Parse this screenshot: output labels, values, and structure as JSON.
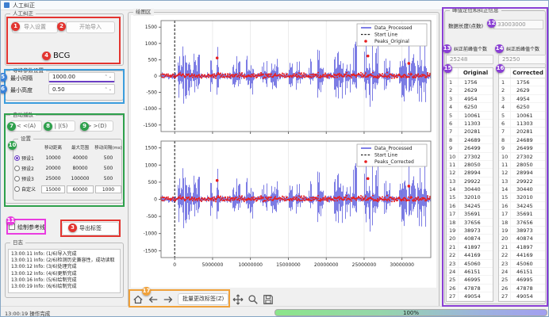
{
  "window": {
    "title": "人工纠正"
  },
  "left_panel": {
    "manual_group": {
      "title": "人工纠正",
      "import_settings_btn": "导入设置",
      "start_import_btn": "开始导入",
      "signal_label": "BCG"
    },
    "peak_params_group": {
      "title": "寻峰参数设置",
      "min_interval_label": "最小间隔",
      "min_interval_value": "1000.00",
      "min_height_label": "最小高度",
      "min_height_value": "0.50"
    },
    "autoplay_group": {
      "title": "自动播放",
      "prev_btn": "< <(A)",
      "pause_btn": "| |(S)",
      "next_btn": "> >(D)",
      "settings_group": {
        "title": "设置",
        "columns": [
          "移动距离",
          "最大范围",
          "移动间隔(ms)"
        ],
        "presets": [
          {
            "label": "预设1",
            "selected": true,
            "editable": false,
            "values": [
              "10000",
              "40000",
              "500"
            ]
          },
          {
            "label": "预设2",
            "selected": false,
            "editable": false,
            "values": [
              "20000",
              "80000",
              "500"
            ]
          },
          {
            "label": "预设3",
            "selected": false,
            "editable": false,
            "values": [
              "25000",
              "100000",
              "500"
            ]
          },
          {
            "label": "自定义",
            "selected": false,
            "editable": true,
            "values": [
              "15000",
              "60000",
              "1000"
            ]
          }
        ]
      }
    },
    "reference_line_checkbox_label": "绘制参考线",
    "reference_line_checked": false,
    "export_labels_btn": "导出标签",
    "log_group": {
      "title": "日志",
      "entries": [
        "13:00:11 Info: (1/6)导入完成",
        "13:00:11 Info: (2/6)检测历史兼容性，成功读取",
        "13:00:12 Info: (3/6)处理完成",
        "13:00:12 Info: (4/6)更新完成",
        "13:00:16 Info: (5/6)绘制完成",
        "13:00:19 Info: (6/6)绘制完成"
      ]
    },
    "status_text": "13:00:19 操作完成"
  },
  "plot_panel": {
    "title": "绘图区",
    "toolbar": {
      "home_icon": "home",
      "back_icon": "back-arrow",
      "forward_icon": "forward-arrow",
      "batch_edit_btn": "批量更改标签(Z)",
      "pan_icon": "pan-arrows",
      "zoom_icon": "magnifier",
      "save_icon": "save-floppy"
    }
  },
  "chart_data": [
    {
      "type": "line",
      "title": "",
      "xlabel": "",
      "ylabel": "",
      "xlim": [
        -1800000,
        33800000
      ],
      "ylim": [
        -1700,
        1700
      ],
      "xticks": [
        0,
        5000000,
        10000000,
        15000000,
        20000000,
        25000000,
        30000000
      ],
      "yticks": [
        -1500,
        -1000,
        -500,
        0,
        500,
        1000,
        1500
      ],
      "show_x_labels": false,
      "grid": "vertical",
      "legend": {
        "position": "upper-right",
        "entries": [
          {
            "label": "Data_Processed",
            "type": "line",
            "color": "#2a2ad4"
          },
          {
            "label": "Start Line",
            "type": "dashed",
            "color": "#222222"
          },
          {
            "label": "Peaks_Original",
            "type": "dot",
            "color": "#e81e1e"
          }
        ]
      },
      "start_line_x": 0,
      "signal": {
        "name": "Data_Processed",
        "color": "#2a2ad4",
        "seed": 7,
        "baseline_amplitude": 120,
        "bursts": [
          [
            300000,
            1200000,
            1250
          ],
          [
            1300000,
            2200000,
            950
          ],
          [
            2300000,
            3300000,
            820
          ],
          [
            4600000,
            5000000,
            900
          ],
          [
            5500000,
            5800000,
            1380
          ],
          [
            7600000,
            8600000,
            700
          ],
          [
            9400000,
            10400000,
            920
          ],
          [
            11400000,
            12200000,
            640
          ],
          [
            12600000,
            13600000,
            880
          ],
          [
            15000000,
            15500000,
            700
          ],
          [
            16000000,
            16600000,
            800
          ],
          [
            17600000,
            18400000,
            660
          ],
          [
            18800000,
            19600000,
            980
          ],
          [
            21000000,
            22200000,
            1200
          ],
          [
            22400000,
            23200000,
            900
          ],
          [
            23400000,
            24000000,
            1300
          ],
          [
            25000000,
            25800000,
            1250
          ],
          [
            26000000,
            26800000,
            1350
          ],
          [
            27600000,
            28400000,
            820
          ],
          [
            29600000,
            30600000,
            1200
          ],
          [
            30800000,
            31800000,
            1350
          ],
          [
            32000000,
            33200000,
            1400
          ]
        ]
      },
      "peaks": {
        "name": "Peaks_Original",
        "color": "#e81e1e",
        "count": 25248,
        "band_y": [
          -70,
          110
        ],
        "outliers": [
          [
            5600000,
            555
          ],
          [
            25500000,
            615
          ],
          [
            30900000,
            390
          ]
        ]
      }
    },
    {
      "type": "line",
      "title": "",
      "xlabel": "",
      "ylabel": "",
      "xlim": [
        -1800000,
        33800000
      ],
      "ylim": [
        -1700,
        1700
      ],
      "xticks": [
        0,
        5000000,
        10000000,
        15000000,
        20000000,
        25000000,
        30000000
      ],
      "yticks": [
        -1500,
        -1000,
        -500,
        0,
        500,
        1000,
        1500
      ],
      "show_x_labels": true,
      "grid": "vertical",
      "legend": {
        "position": "upper-right",
        "entries": [
          {
            "label": "Data_Processed",
            "type": "line",
            "color": "#2a2ad4"
          },
          {
            "label": "Start Line",
            "type": "dashed",
            "color": "#222222"
          },
          {
            "label": "Peaks_Corrected",
            "type": "dot",
            "color": "#e81e1e"
          }
        ]
      },
      "start_line_x": 0,
      "signal": {
        "name": "Data_Processed",
        "color": "#2a2ad4",
        "seed": 7,
        "baseline_amplitude": 120,
        "bursts": [
          [
            300000,
            1200000,
            1250
          ],
          [
            1300000,
            2200000,
            950
          ],
          [
            2300000,
            3300000,
            820
          ],
          [
            4600000,
            5000000,
            900
          ],
          [
            5500000,
            5800000,
            1380
          ],
          [
            7600000,
            8600000,
            700
          ],
          [
            9400000,
            10400000,
            920
          ],
          [
            11400000,
            12200000,
            640
          ],
          [
            12600000,
            13600000,
            880
          ],
          [
            15000000,
            15500000,
            700
          ],
          [
            16000000,
            16600000,
            800
          ],
          [
            17600000,
            18400000,
            660
          ],
          [
            18800000,
            19600000,
            980
          ],
          [
            21000000,
            22200000,
            1200
          ],
          [
            22400000,
            23200000,
            900
          ],
          [
            23400000,
            24000000,
            1300
          ],
          [
            25000000,
            25800000,
            1250
          ],
          [
            26000000,
            26800000,
            1350
          ],
          [
            27600000,
            28400000,
            820
          ],
          [
            29600000,
            30600000,
            1200
          ],
          [
            30800000,
            31800000,
            1350
          ],
          [
            32000000,
            33200000,
            1400
          ]
        ]
      },
      "peaks": {
        "name": "Peaks_Corrected",
        "color": "#e81e1e",
        "count": 25250,
        "band_y": [
          -70,
          110
        ],
        "outliers": [
          [
            5600000,
            550
          ],
          [
            25500000,
            605
          ],
          [
            30900000,
            385
          ]
        ]
      }
    }
  ],
  "right_panel": {
    "title": "峰值定位和纠正信息",
    "data_length_label": "数据长度(点数)",
    "data_length_value": "33003000",
    "before_count_label": "纠正前峰值个数",
    "before_count_value": "25248",
    "after_count_label": "纠正后峰值个数",
    "after_count_value": "25250",
    "original_table": {
      "header": "Original",
      "rows": [
        [
          "1",
          "1756"
        ],
        [
          "2",
          "2629"
        ],
        [
          "3",
          "4954"
        ],
        [
          "4",
          "6250"
        ],
        [
          "5",
          "10061"
        ],
        [
          "6",
          "11303"
        ],
        [
          "7",
          "20281"
        ],
        [
          "8",
          "24689"
        ],
        [
          "9",
          "26499"
        ],
        [
          "10",
          "27302"
        ],
        [
          "11",
          "28050"
        ],
        [
          "12",
          "28994"
        ],
        [
          "13",
          "29922"
        ],
        [
          "14",
          "30440"
        ],
        [
          "15",
          "32010"
        ],
        [
          "16",
          "34245"
        ],
        [
          "17",
          "35691"
        ],
        [
          "18",
          "37656"
        ],
        [
          "19",
          "38973"
        ],
        [
          "20",
          "40874"
        ],
        [
          "21",
          "41897"
        ],
        [
          "22",
          "44169"
        ],
        [
          "23",
          "45060"
        ],
        [
          "24",
          "46151"
        ],
        [
          "25",
          "46995"
        ],
        [
          "26",
          "47878"
        ],
        [
          "27",
          "49054"
        ]
      ]
    },
    "corrected_table": {
      "header": "Corrected",
      "rows": [
        [
          "1",
          "1756"
        ],
        [
          "2",
          "2629"
        ],
        [
          "3",
          "4954"
        ],
        [
          "4",
          "6250"
        ],
        [
          "5",
          "10061"
        ],
        [
          "6",
          "11303"
        ],
        [
          "7",
          "20281"
        ],
        [
          "8",
          "24689"
        ],
        [
          "9",
          "26499"
        ],
        [
          "10",
          "27302"
        ],
        [
          "11",
          "28050"
        ],
        [
          "12",
          "28994"
        ],
        [
          "13",
          "29922"
        ],
        [
          "14",
          "30440"
        ],
        [
          "15",
          "32010"
        ],
        [
          "16",
          "34245"
        ],
        [
          "17",
          "35691"
        ],
        [
          "18",
          "37656"
        ],
        [
          "19",
          "38973"
        ],
        [
          "20",
          "40874"
        ],
        [
          "21",
          "41897"
        ],
        [
          "22",
          "44169"
        ],
        [
          "23",
          "45060"
        ],
        [
          "24",
          "46151"
        ],
        [
          "25",
          "46995"
        ],
        [
          "26",
          "47878"
        ],
        [
          "27",
          "49054"
        ]
      ]
    }
  },
  "progress_bar": {
    "value_text": "100%",
    "percent": 100,
    "gradient": [
      "#8be58a",
      "#a29ff0"
    ]
  },
  "annotations": {
    "colors": {
      "red": "#e3342f",
      "blue": "#3b82d8",
      "green": "#2ea04c",
      "magenta": "#ea3ce0",
      "purple": "#8a3fd4",
      "orange": "#f0a13a"
    },
    "badges": {
      "b1": "1",
      "b2": "2",
      "b3": "3",
      "b4": "4",
      "b5": "5",
      "b6": "6",
      "b7": "7",
      "b8": "8",
      "b9": "9",
      "b10": "10",
      "b11": "11",
      "b12": "12",
      "b13": "13",
      "b14": "14",
      "b15": "15",
      "b16": "16",
      "b17": "17"
    }
  }
}
